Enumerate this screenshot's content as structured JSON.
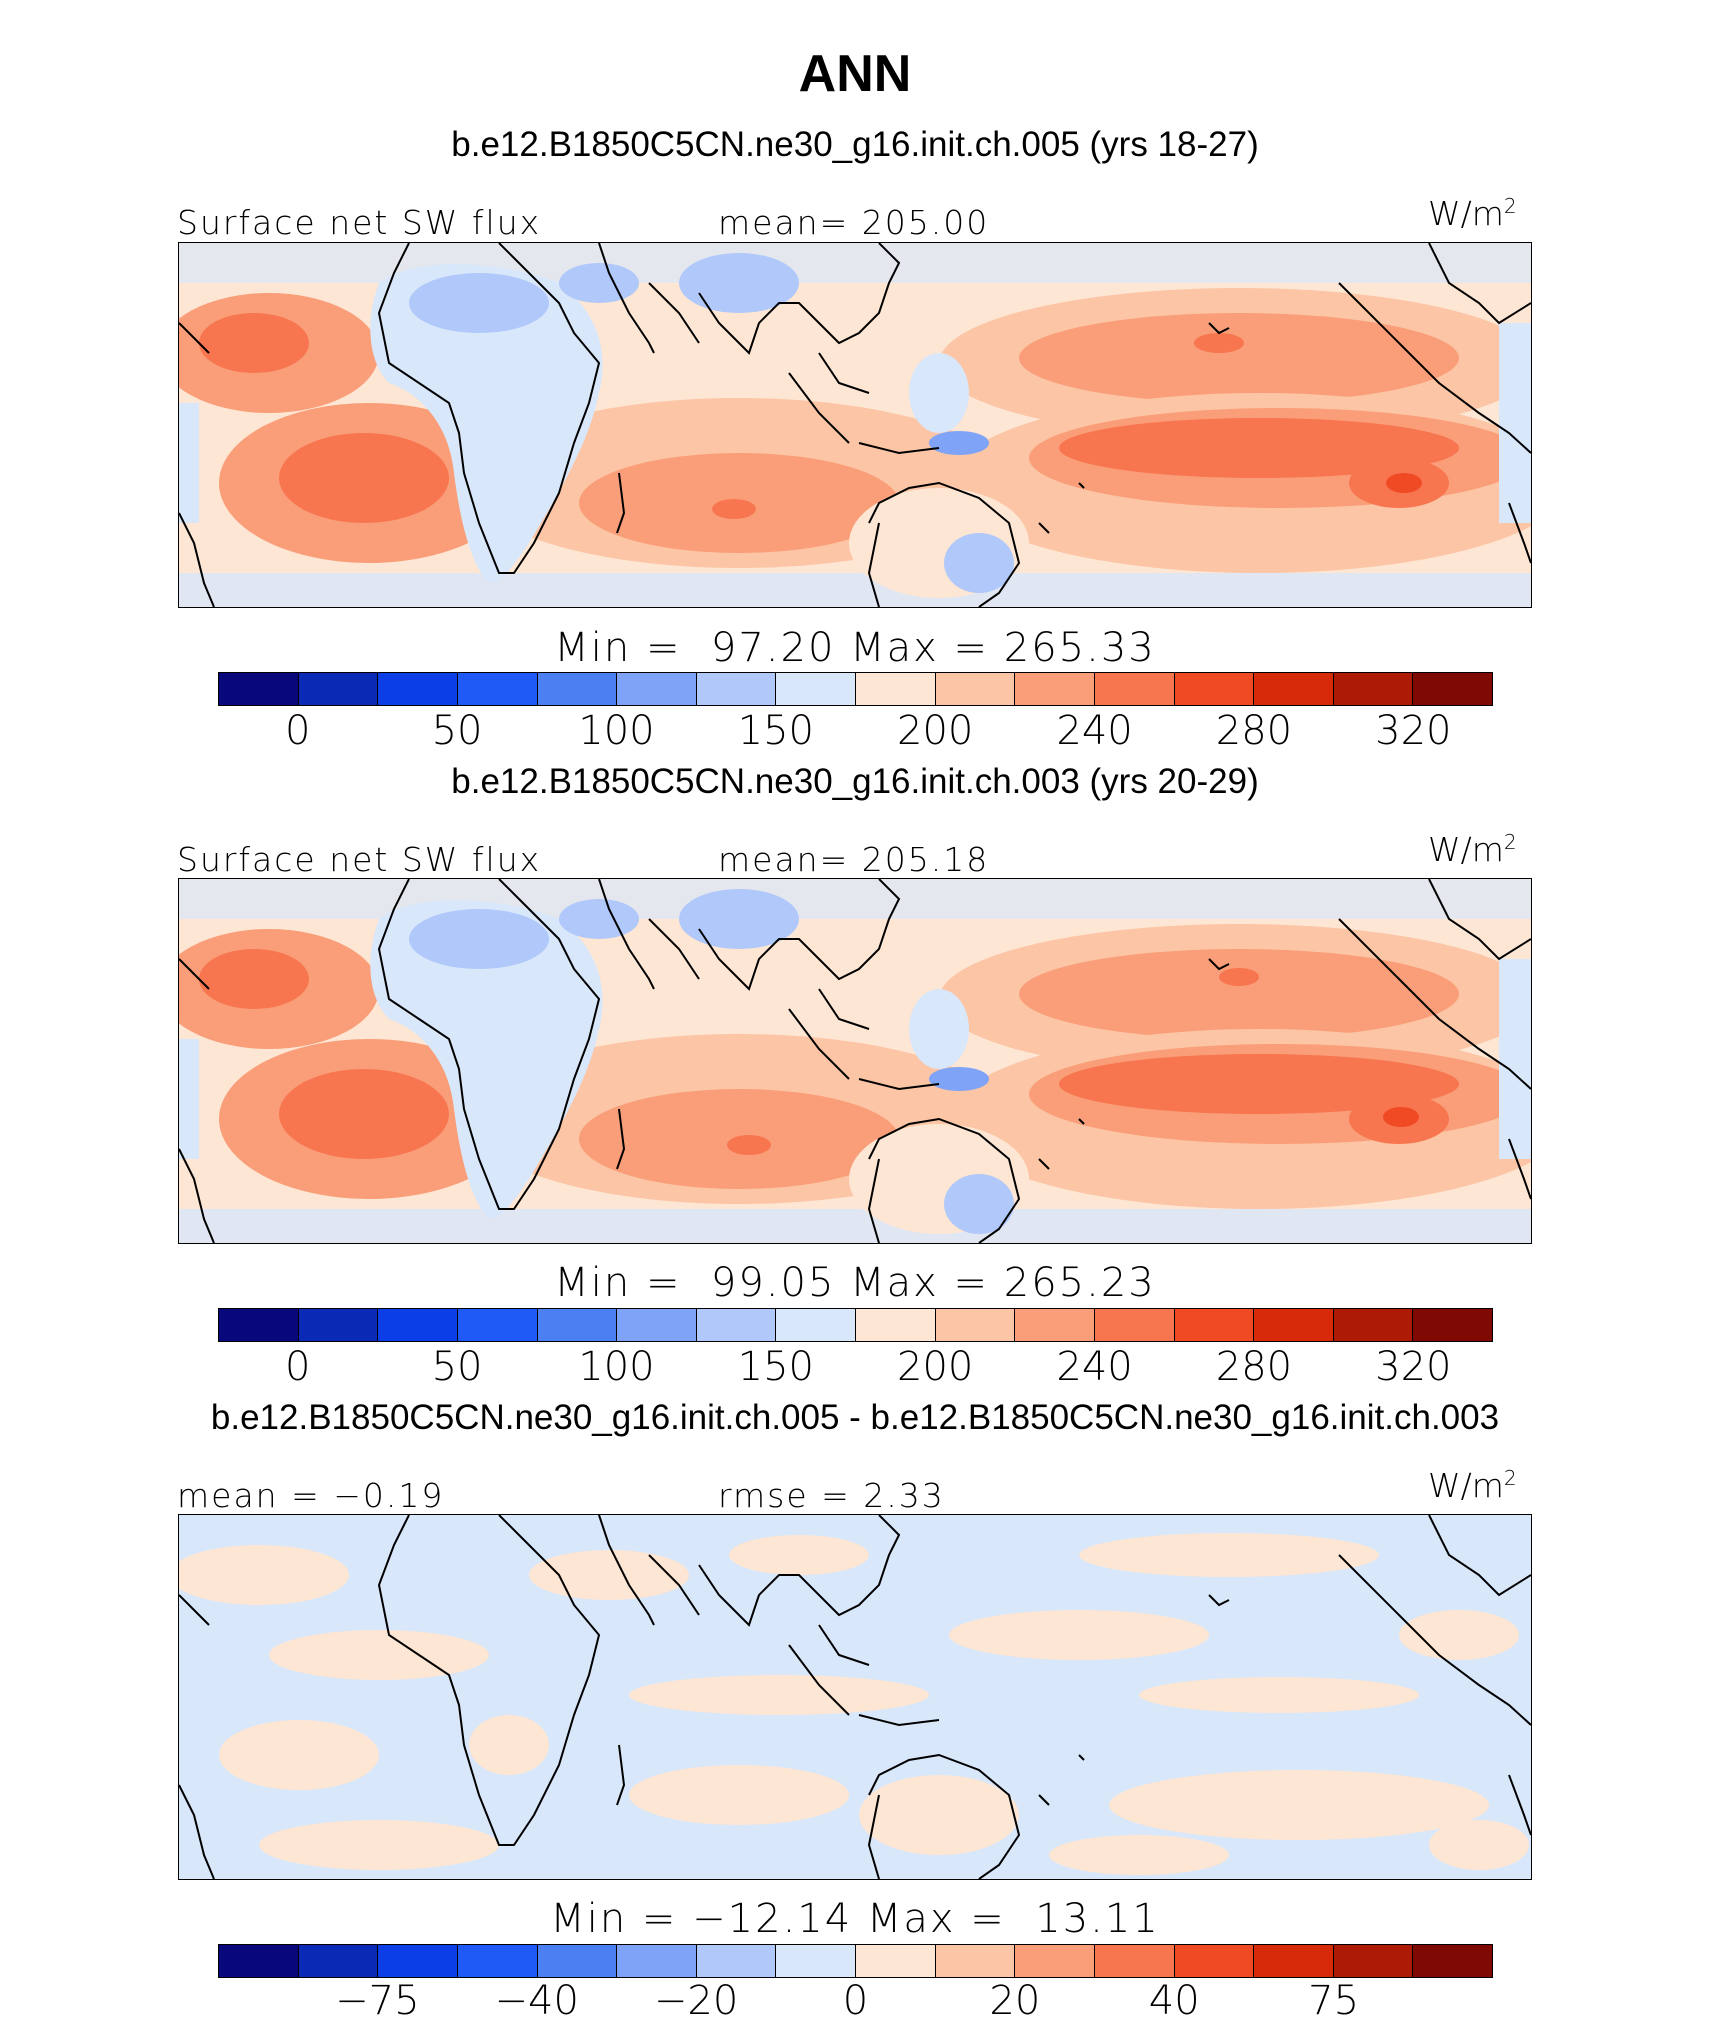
{
  "title": "ANN",
  "colors": [
    "#08087a",
    "#0a2ab5",
    "#0c3ee8",
    "#1f5af7",
    "#4c80f2",
    "#7ea3f7",
    "#b0c8fa",
    "#d8e7fa",
    "#fde6d4",
    "#fcc5a5",
    "#f99e78",
    "#f77650",
    "#f04a24",
    "#d62a0a",
    "#ad1a06",
    "#7f0a04"
  ],
  "panels": [
    {
      "case_title": "b.e12.B1850C5CN.ne30_g16.init.ch.005 (yrs 18-27)",
      "left_label": "Surface net SW flux",
      "center_label": "mean= 205.00",
      "units_base": "W/m",
      "units_sup": "2",
      "minmax": "Min =  97.20 Max = 265.33",
      "ticks": [
        "0",
        "50",
        "100",
        "150",
        "200",
        "240",
        "280",
        "320"
      ]
    },
    {
      "case_title": "b.e12.B1850C5CN.ne30_g16.init.ch.003 (yrs 20-29)",
      "left_label": "Surface net SW flux",
      "center_label": "mean= 205.18",
      "units_base": "W/m",
      "units_sup": "2",
      "minmax": "Min =  99.05 Max = 265.23",
      "ticks": [
        "0",
        "50",
        "100",
        "150",
        "200",
        "240",
        "280",
        "320"
      ]
    },
    {
      "case_title": "b.e12.B1850C5CN.ne30_g16.init.ch.005 - b.e12.B1850C5CN.ne30_g16.init.ch.003",
      "left_label": "mean =  −0.19",
      "center_label": "rmse =    2.33",
      "units_base": "W/m",
      "units_sup": "2",
      "minmax": "Min = −12.14 Max =  13.11",
      "ticks": [
        "−75",
        "−40",
        "−20",
        "0",
        "20",
        "40",
        "75"
      ]
    }
  ]
}
